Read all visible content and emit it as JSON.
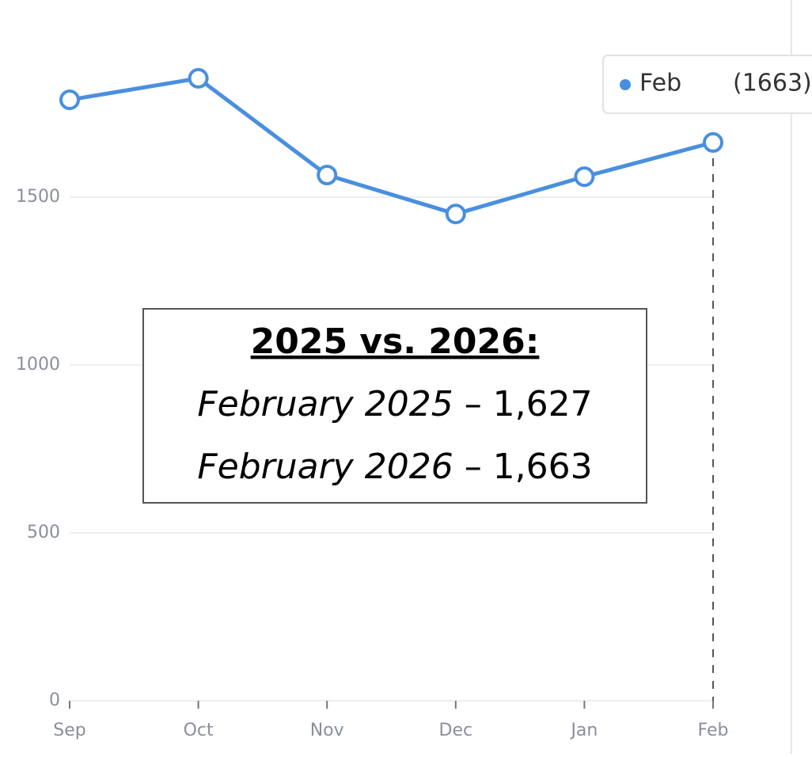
{
  "chart_data": {
    "type": "line",
    "categories": [
      "Sep",
      "Oct",
      "Nov",
      "Dec",
      "Jan",
      "Feb"
    ],
    "series": [
      {
        "name": "Feb",
        "color": "#4a8fdf",
        "values": [
          1790,
          1854,
          1566,
          1450,
          1561,
          1663
        ]
      }
    ],
    "ylim": [
      0,
      2000
    ],
    "yticks": [
      0,
      500,
      1000,
      1500
    ],
    "grid": true,
    "tooltip": {
      "label": "Feb",
      "value": "(1663)"
    },
    "annotation": {
      "title": "2025 vs. 2026:",
      "lines": [
        {
          "label": "February 2025",
          "value": "– 1,627"
        },
        {
          "label": "February 2026",
          "value": "– 1,663"
        }
      ]
    }
  }
}
